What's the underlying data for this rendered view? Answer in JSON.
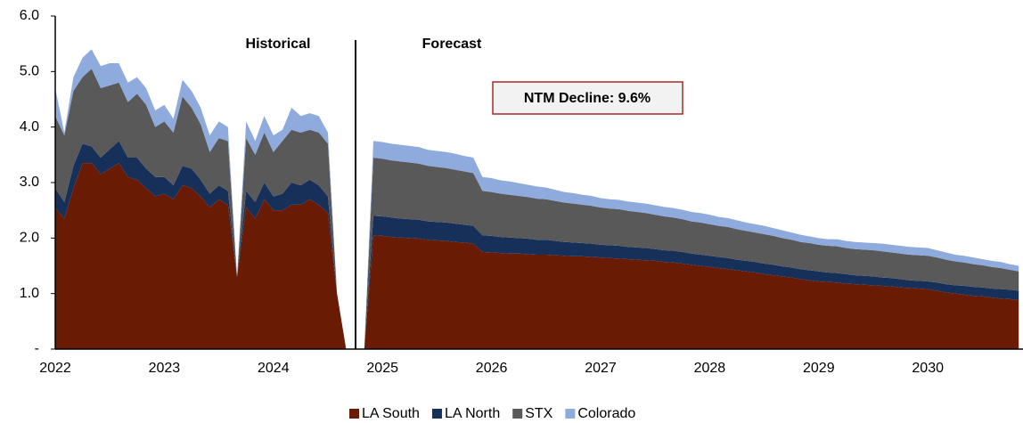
{
  "chart_data": {
    "type": "stacked_area",
    "categories": [
      "2022",
      null,
      null,
      null,
      null,
      null,
      null,
      null,
      null,
      null,
      null,
      null,
      "2023",
      null,
      null,
      null,
      null,
      null,
      null,
      null,
      null,
      null,
      null,
      null,
      "2024",
      null,
      null,
      null,
      null,
      null,
      null,
      null,
      null,
      null,
      null,
      null,
      "2025",
      null,
      null,
      null,
      null,
      null,
      null,
      null,
      null,
      null,
      null,
      null,
      "2026",
      null,
      null,
      null,
      null,
      null,
      null,
      null,
      null,
      null,
      null,
      null,
      "2027",
      null,
      null,
      null,
      null,
      null,
      null,
      null,
      null,
      null,
      null,
      null,
      "2028",
      null,
      null,
      null,
      null,
      null,
      null,
      null,
      null,
      null,
      null,
      null,
      "2029",
      null,
      null,
      null,
      null,
      null,
      null,
      null,
      null,
      null,
      null,
      null,
      "2030",
      null,
      null,
      null,
      null,
      null,
      null,
      null,
      null,
      null,
      null
    ],
    "series": [
      {
        "name": "LA South",
        "color": "#6a1b04",
        "values": [
          2.55,
          2.35,
          2.9,
          3.35,
          3.35,
          3.15,
          3.25,
          3.35,
          3.1,
          3.05,
          2.9,
          2.75,
          2.8,
          2.7,
          2.95,
          2.9,
          2.75,
          2.55,
          2.7,
          2.6,
          1.3,
          2.55,
          2.35,
          2.7,
          2.5,
          2.5,
          2.6,
          2.6,
          2.7,
          2.6,
          2.45,
          1.0,
          0,
          0,
          0,
          2.05,
          2.04,
          2.02,
          2.01,
          2.0,
          1.99,
          1.97,
          1.96,
          1.95,
          1.93,
          1.92,
          1.9,
          1.75,
          1.74,
          1.73,
          1.72,
          1.72,
          1.71,
          1.7,
          1.7,
          1.69,
          1.68,
          1.67,
          1.67,
          1.66,
          1.65,
          1.64,
          1.63,
          1.62,
          1.61,
          1.6,
          1.59,
          1.57,
          1.56,
          1.54,
          1.52,
          1.5,
          1.48,
          1.46,
          1.44,
          1.42,
          1.4,
          1.38,
          1.35,
          1.33,
          1.31,
          1.29,
          1.26,
          1.24,
          1.22,
          1.21,
          1.2,
          1.18,
          1.17,
          1.16,
          1.15,
          1.14,
          1.13,
          1.11,
          1.1,
          1.09,
          1.08,
          1.05,
          1.02,
          1.0,
          0.98,
          0.96,
          0.95,
          0.93,
          0.91,
          0.9,
          0.88
        ]
      },
      {
        "name": "LA North",
        "color": "#17305a",
        "values": [
          0.35,
          0.3,
          0.4,
          0.35,
          0.3,
          0.3,
          0.35,
          0.4,
          0.35,
          0.4,
          0.35,
          0.35,
          0.3,
          0.25,
          0.35,
          0.35,
          0.3,
          0.25,
          0.25,
          0.25,
          0,
          0.3,
          0.3,
          0.3,
          0.25,
          0.3,
          0.4,
          0.35,
          0.35,
          0.35,
          0.3,
          0,
          0,
          0,
          0,
          0.35,
          0.35,
          0.35,
          0.34,
          0.34,
          0.34,
          0.33,
          0.33,
          0.33,
          0.33,
          0.32,
          0.32,
          0.3,
          0.3,
          0.29,
          0.29,
          0.28,
          0.28,
          0.27,
          0.27,
          0.26,
          0.25,
          0.25,
          0.24,
          0.24,
          0.23,
          0.23,
          0.23,
          0.22,
          0.22,
          0.22,
          0.21,
          0.21,
          0.21,
          0.21,
          0.2,
          0.2,
          0.2,
          0.2,
          0.2,
          0.19,
          0.19,
          0.19,
          0.19,
          0.19,
          0.18,
          0.18,
          0.18,
          0.18,
          0.18,
          0.17,
          0.17,
          0.17,
          0.16,
          0.16,
          0.16,
          0.15,
          0.15,
          0.15,
          0.14,
          0.14,
          0.14,
          0.15,
          0.15,
          0.15,
          0.16,
          0.16,
          0.16,
          0.16,
          0.17,
          0.17,
          0.17
        ]
      },
      {
        "name": "STX",
        "color": "#595959",
        "values": [
          1.3,
          1.2,
          1.35,
          1.2,
          1.4,
          1.25,
          1.15,
          1.05,
          1.0,
          1.15,
          1.15,
          0.9,
          1.0,
          0.95,
          1.25,
          1.1,
          1.0,
          0.75,
          0.85,
          0.9,
          0,
          0.95,
          0.85,
          0.9,
          0.8,
          0.95,
          0.95,
          0.95,
          0.9,
          0.95,
          0.95,
          0,
          0,
          0,
          0,
          1.05,
          1.04,
          1.03,
          1.03,
          1.02,
          1.01,
          1.0,
          0.99,
          0.98,
          0.97,
          0.96,
          0.95,
          0.8,
          0.79,
          0.78,
          0.77,
          0.76,
          0.75,
          0.74,
          0.73,
          0.72,
          0.71,
          0.7,
          0.69,
          0.68,
          0.67,
          0.66,
          0.66,
          0.65,
          0.64,
          0.63,
          0.62,
          0.61,
          0.6,
          0.59,
          0.58,
          0.58,
          0.57,
          0.56,
          0.56,
          0.55,
          0.54,
          0.53,
          0.53,
          0.52,
          0.51,
          0.5,
          0.49,
          0.49,
          0.48,
          0.48,
          0.48,
          0.47,
          0.47,
          0.47,
          0.47,
          0.47,
          0.46,
          0.46,
          0.46,
          0.46,
          0.46,
          0.45,
          0.44,
          0.43,
          0.42,
          0.41,
          0.4,
          0.39,
          0.38,
          0.36,
          0.35
        ]
      },
      {
        "name": "Colorado",
        "color": "#8faadc",
        "values": [
          0.5,
          0.05,
          0.25,
          0.35,
          0.35,
          0.4,
          0.4,
          0.35,
          0.35,
          0.3,
          0.3,
          0.3,
          0.3,
          0.25,
          0.3,
          0.3,
          0.3,
          0.3,
          0.3,
          0.25,
          0,
          0.3,
          0.25,
          0.3,
          0.3,
          0.2,
          0.4,
          0.3,
          0.3,
          0.3,
          0.2,
          0,
          0,
          0,
          0,
          0.3,
          0.3,
          0.3,
          0.3,
          0.3,
          0.3,
          0.29,
          0.29,
          0.29,
          0.29,
          0.28,
          0.28,
          0.25,
          0.25,
          0.24,
          0.24,
          0.23,
          0.22,
          0.22,
          0.21,
          0.2,
          0.19,
          0.19,
          0.18,
          0.18,
          0.17,
          0.17,
          0.17,
          0.17,
          0.17,
          0.17,
          0.17,
          0.17,
          0.17,
          0.17,
          0.17,
          0.17,
          0.17,
          0.16,
          0.16,
          0.16,
          0.15,
          0.15,
          0.15,
          0.14,
          0.14,
          0.13,
          0.13,
          0.12,
          0.12,
          0.12,
          0.13,
          0.13,
          0.13,
          0.13,
          0.13,
          0.14,
          0.14,
          0.14,
          0.14,
          0.14,
          0.14,
          0.13,
          0.13,
          0.12,
          0.12,
          0.12,
          0.11,
          0.11,
          0.11,
          0.1,
          0.1
        ]
      }
    ],
    "ylim": [
      0,
      6
    ],
    "yticks": [
      {
        "value": 0,
        "label": "-"
      },
      {
        "value": 1,
        "label": "1.0"
      },
      {
        "value": 2,
        "label": "2.0"
      },
      {
        "value": 3,
        "label": "3.0"
      },
      {
        "value": 4,
        "label": "4.0"
      },
      {
        "value": 5,
        "label": "5.0"
      },
      {
        "value": 6,
        "label": "6.0"
      }
    ],
    "annotations": [
      "Historical",
      "Forecast",
      "NTM Decline: 9.6%"
    ],
    "legend": "bottom"
  }
}
